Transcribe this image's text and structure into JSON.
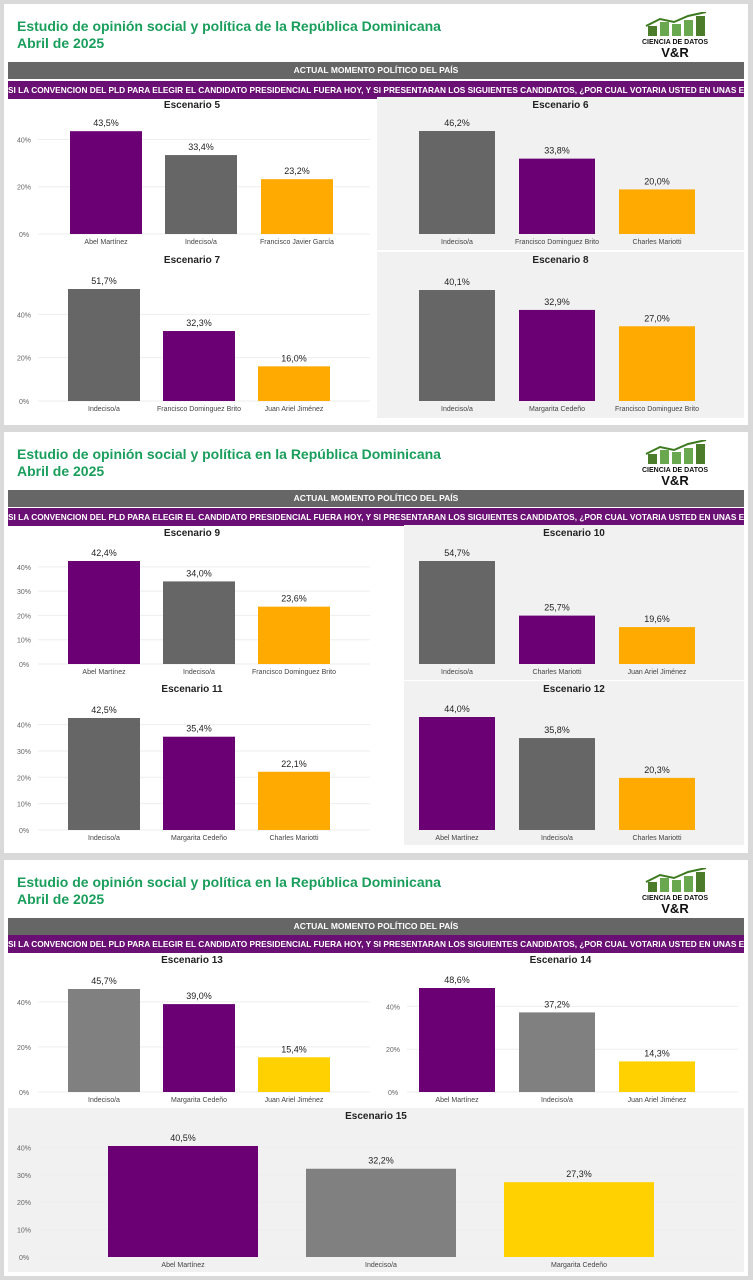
{
  "panels": [
    {
      "title_line1": "Estudio de opinión social y política de la República Dominicana",
      "title_line2": "Abril de 2025",
      "logo_line1": "CIENCIA DE DATOS",
      "logo_line2": "V&R",
      "banner_gray": "ACTUAL MOMENTO POLÍTICO DEL PAÍS",
      "banner_purple": "SI LA CONVENCION DEL PLD PARA ELEGIR EL CANDIDATO PRESIDENCIAL FUERA HOY, Y SI PRESENTARAN LOS SIGUIENTES CANDIDATOS, ¿POR CUAL VOTARIA USTED EN UNAS ELECCIONES ABIERTAS?"
    },
    {
      "title_line1": "Estudio de opinión social y política en la República Dominicana",
      "title_line2": "Abril de 2025",
      "logo_line1": "CIENCIA DE DATOS",
      "logo_line2": "V&R",
      "banner_gray": "ACTUAL MOMENTO POLÍTICO DEL PAÍS",
      "banner_purple": "SI LA CONVENCION DEL PLD PARA ELEGIR EL CANDIDATO PRESIDENCIAL FUERA HOY, Y SI PRESENTARAN LOS SIGUIENTES CANDIDATOS, ¿POR CUAL VOTARIA USTED EN UNAS ELECCIONES ABIERTAS?"
    },
    {
      "title_line1": "Estudio de opinión social y política en la República Dominicana",
      "title_line2": "Abril de 2025",
      "logo_line1": "CIENCIA DE DATOS",
      "logo_line2": "V&R",
      "banner_gray": "ACTUAL MOMENTO POLÍTICO DEL PAÍS",
      "banner_purple": "SI LA CONVENCION DEL PLD PARA ELEGIR EL CANDIDATO PRESIDENCIAL FUERA HOY, Y SI PRESENTARAN LOS SIGUIENTES CANDIDATOS, ¿POR CUAL VOTARIA USTED EN UNAS ELECCIONES ABIERTAS?"
    }
  ],
  "colors": {
    "purple": "#6a0074",
    "gray": "#666666",
    "orange": "#ffaa00",
    "lightgray": "#808080",
    "yellow": "#ffd100"
  },
  "chart_data": [
    {
      "type": "bar",
      "title": "Escenario 5",
      "categories": [
        "Abel Martínez",
        "Indeciso/a",
        "Francisco Javier García"
      ],
      "values": [
        43.5,
        33.4,
        23.2
      ],
      "value_labels": [
        "43,5%",
        "33,4%",
        "23,2%"
      ],
      "colors": [
        "purple",
        "gray",
        "orange"
      ],
      "ylim": [
        0,
        44
      ],
      "ticks": [
        0,
        20,
        40
      ],
      "tick_labels": [
        "0%",
        "20%",
        "40%"
      ]
    },
    {
      "type": "bar",
      "title": "Escenario 6",
      "categories": [
        "Indeciso/a",
        "Francisco Dominguez Brito",
        "Charles Mariotti"
      ],
      "values": [
        46.2,
        33.8,
        20.0
      ],
      "value_labels": [
        "46,2%",
        "33,8%",
        "20,0%"
      ],
      "colors": [
        "gray",
        "purple",
        "orange"
      ],
      "ylim": [
        0,
        46.2
      ],
      "ticks": [],
      "tick_labels": []
    },
    {
      "type": "bar",
      "title": "Escenario 7",
      "categories": [
        "Indeciso/a",
        "Francisco Dominguez Brito",
        "Juan Ariel Jiménez"
      ],
      "values": [
        51.7,
        32.3,
        16.0
      ],
      "value_labels": [
        "51,7%",
        "32,3%",
        "16,0%"
      ],
      "colors": [
        "gray",
        "purple",
        "orange"
      ],
      "ylim": [
        0,
        51.7
      ],
      "ticks": [
        0,
        20,
        40
      ],
      "tick_labels": [
        "0%",
        "20%",
        "40%"
      ]
    },
    {
      "type": "bar",
      "title": "Escenario 8",
      "categories": [
        "Indeciso/a",
        "Margarita Cedeño",
        "Francisco Dominguez Brito"
      ],
      "values": [
        40.1,
        32.9,
        27.0
      ],
      "value_labels": [
        "40,1%",
        "32,9%",
        "27,0%"
      ],
      "colors": [
        "gray",
        "purple",
        "orange"
      ],
      "ylim": [
        0,
        40.1
      ],
      "ticks": [],
      "tick_labels": []
    },
    {
      "type": "bar",
      "title": "Escenario 9",
      "categories": [
        "Abel Martínez",
        "Indeciso/a",
        "Francisco Dominguez Brito"
      ],
      "values": [
        42.4,
        34.0,
        23.6
      ],
      "value_labels": [
        "42,4%",
        "34,0%",
        "23,6%"
      ],
      "colors": [
        "purple",
        "gray",
        "orange"
      ],
      "ylim": [
        0,
        42.4
      ],
      "ticks": [
        0,
        10,
        20,
        30,
        40
      ],
      "tick_labels": [
        "0%",
        "10%",
        "20%",
        "30%",
        "40%"
      ]
    },
    {
      "type": "bar",
      "title": "Escenario 10",
      "categories": [
        "Indeciso/a",
        "Charles Mariotti",
        "Juan Ariel Jiménez"
      ],
      "values": [
        54.7,
        25.7,
        19.6
      ],
      "value_labels": [
        "54,7%",
        "25,7%",
        "19,6%"
      ],
      "colors": [
        "gray",
        "purple",
        "orange"
      ],
      "ylim": [
        0,
        54.7
      ],
      "ticks": [],
      "tick_labels": []
    },
    {
      "type": "bar",
      "title": "Escenario 11",
      "categories": [
        "Indeciso/a",
        "Margarita Cedeño",
        "Charles Mariotti"
      ],
      "values": [
        42.5,
        35.4,
        22.1
      ],
      "value_labels": [
        "42,5%",
        "35,4%",
        "22,1%"
      ],
      "colors": [
        "gray",
        "purple",
        "orange"
      ],
      "ylim": [
        0,
        42.5
      ],
      "ticks": [
        0,
        10,
        20,
        30,
        40
      ],
      "tick_labels": [
        "0%",
        "10%",
        "20%",
        "30%",
        "40%"
      ]
    },
    {
      "type": "bar",
      "title": "Escenario 12",
      "categories": [
        "Abel Martínez",
        "Indeciso/a",
        "Charles Mariotti"
      ],
      "values": [
        44.0,
        35.8,
        20.3
      ],
      "value_labels": [
        "44,0%",
        "35,8%",
        "20,3%"
      ],
      "colors": [
        "purple",
        "gray",
        "orange"
      ],
      "ylim": [
        0,
        44.0
      ],
      "ticks": [],
      "tick_labels": []
    },
    {
      "type": "bar",
      "title": "Escenario 13",
      "categories": [
        "Indeciso/a",
        "Margarita Cedeño",
        "Juan Ariel Jiménez"
      ],
      "values": [
        45.7,
        39.0,
        15.4
      ],
      "value_labels": [
        "45,7%",
        "39,0%",
        "15,4%"
      ],
      "colors": [
        "lightgray",
        "purple",
        "yellow"
      ],
      "ylim": [
        0,
        45.7
      ],
      "ticks": [
        0,
        20,
        40
      ],
      "tick_labels": [
        "0%",
        "20%",
        "40%"
      ]
    },
    {
      "type": "bar",
      "title": "Escenario 14",
      "categories": [
        "Abel Martínez",
        "Indeciso/a",
        "Juan Ariel Jiménez"
      ],
      "values": [
        48.6,
        37.2,
        14.3
      ],
      "value_labels": [
        "48,6%",
        "37,2%",
        "14,3%"
      ],
      "colors": [
        "purple",
        "lightgray",
        "yellow"
      ],
      "ylim": [
        0,
        48.6
      ],
      "ticks": [
        0,
        20,
        40
      ],
      "tick_labels": [
        "0%",
        "20%",
        "40%"
      ]
    },
    {
      "type": "bar",
      "title": "Escenario 15",
      "categories": [
        "Abel Martínez",
        "Indeciso/a",
        "Margarita Cedeño"
      ],
      "values": [
        40.5,
        32.2,
        27.3
      ],
      "value_labels": [
        "40,5%",
        "32,2%",
        "27,3%"
      ],
      "colors": [
        "purple",
        "lightgray",
        "yellow"
      ],
      "ylim": [
        0,
        40.5
      ],
      "ticks": [
        0,
        10,
        20,
        30,
        40
      ],
      "tick_labels": [
        "0%",
        "10%",
        "20%",
        "30%",
        "40%"
      ]
    }
  ]
}
